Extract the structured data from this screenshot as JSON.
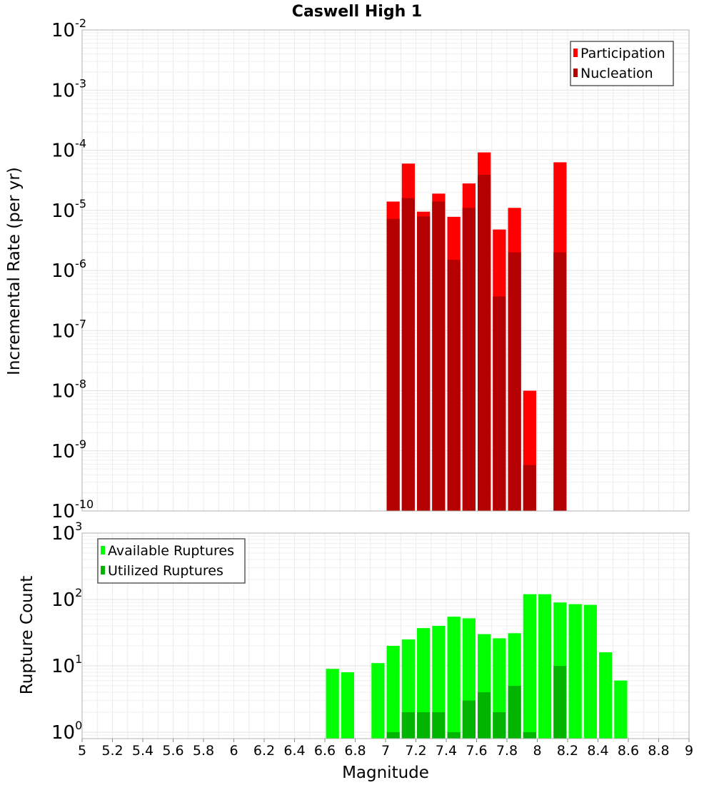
{
  "chart_data": [
    {
      "panel": "top",
      "type": "bar",
      "title": "Caswell High 1",
      "xlabel": "",
      "ylabel": "Incremental Rate (per yr)",
      "xlim": [
        5,
        9
      ],
      "ylim": [
        1e-10,
        0.01
      ],
      "yscale": "log",
      "ytick_labels": [
        {
          "base": "10",
          "exp": "-10",
          "value": 1e-10
        },
        {
          "base": "10",
          "exp": "-9",
          "value": 1e-09
        },
        {
          "base": "10",
          "exp": "-8",
          "value": 1e-08
        },
        {
          "base": "10",
          "exp": "-7",
          "value": 1e-07
        },
        {
          "base": "10",
          "exp": "-6",
          "value": 1e-06
        },
        {
          "base": "10",
          "exp": "-5",
          "value": 1e-05
        },
        {
          "base": "10",
          "exp": "-4",
          "value": 0.0001
        },
        {
          "base": "10",
          "exp": "-3",
          "value": 0.001
        },
        {
          "base": "10",
          "exp": "-2",
          "value": 0.01
        }
      ],
      "grid": true,
      "legend_position": "top-right",
      "bin_width": 0.1,
      "x": [
        7.05,
        7.15,
        7.25,
        7.35,
        7.45,
        7.55,
        7.65,
        7.75,
        7.85,
        7.95,
        8.15
      ],
      "series": [
        {
          "name": "Participation",
          "color": "#ff0000",
          "values": [
            1.4e-05,
            6e-05,
            9.5e-06,
            1.9e-05,
            7.8e-06,
            2.8e-05,
            9.2e-05,
            4.8e-06,
            1.1e-05,
            1e-08,
            6.3e-05
          ]
        },
        {
          "name": "Nucleation",
          "color": "#b40000",
          "values": [
            7.2e-06,
            1.6e-05,
            7.9e-06,
            1.4e-05,
            1.5e-06,
            1.1e-05,
            3.9e-05,
            3.7e-07,
            2e-06,
            5.8e-10,
            2e-06
          ]
        }
      ]
    },
    {
      "panel": "bottom",
      "type": "bar",
      "xlabel": "Magnitude",
      "ylabel": "Rupture Count",
      "xlim": [
        5,
        9
      ],
      "ylim": [
        0.8,
        1000
      ],
      "yscale": "log",
      "ytick_labels": [
        {
          "base": "10",
          "exp": "0",
          "value": 1
        },
        {
          "base": "10",
          "exp": "1",
          "value": 10
        },
        {
          "base": "10",
          "exp": "2",
          "value": 100
        },
        {
          "base": "10",
          "exp": "3",
          "value": 1000
        }
      ],
      "xtick_labels": [
        "5",
        "5.2",
        "5.4",
        "5.6",
        "5.8",
        "6",
        "6.2",
        "6.4",
        "6.6",
        "6.8",
        "7",
        "7.2",
        "7.4",
        "7.6",
        "7.8",
        "8",
        "8.2",
        "8.4",
        "8.6",
        "8.8",
        "9"
      ],
      "xticks": [
        5,
        5.2,
        5.4,
        5.6,
        5.8,
        6,
        6.2,
        6.4,
        6.6,
        6.8,
        7,
        7.2,
        7.4,
        7.6,
        7.8,
        8,
        8.2,
        8.4,
        8.6,
        8.8,
        9
      ],
      "grid": true,
      "legend_position": "top-left",
      "bin_width": 0.1,
      "x": [
        6.65,
        6.75,
        6.95,
        7.05,
        7.15,
        7.25,
        7.35,
        7.45,
        7.55,
        7.65,
        7.75,
        7.85,
        7.95,
        8.05,
        8.15,
        8.25,
        8.35,
        8.45,
        8.55
      ],
      "series": [
        {
          "name": "Available Ruptures",
          "color": "#00ff00",
          "values": [
            9,
            8,
            11,
            20,
            25,
            37,
            40,
            55,
            52,
            30,
            26,
            31,
            120,
            120,
            90,
            85,
            83,
            16,
            6
          ]
        },
        {
          "name": "Utilized Ruptures",
          "color": "#00b400",
          "values": [
            0,
            0,
            0,
            1,
            2,
            2,
            2,
            1,
            3,
            4,
            2,
            5,
            1,
            0,
            10,
            0,
            0,
            0,
            0
          ]
        }
      ]
    }
  ]
}
